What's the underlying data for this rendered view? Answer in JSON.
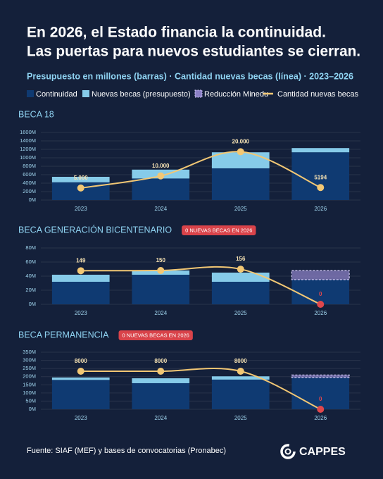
{
  "title": [
    "En 2026, el Estado financia la continuidad.",
    "Las puertas para nuevos estudiantes se cierran."
  ],
  "subtitle": "Presupuesto en millones (barras) · Cantidad nuevas becas (línea) · 2023–2026",
  "source": "Fuente: SIAF (MEF) y bases de convocatorias (Pronabec)",
  "logo": "CAPPES",
  "chart_data": [
    {
      "type": "bar-line",
      "title": "BECA 18",
      "categories": [
        "2023",
        "2024",
        "2025",
        "2026"
      ],
      "stacked": true,
      "ylim": [
        0,
        1600
      ],
      "yticks": [
        {
          "value": 0,
          "label": "0M"
        },
        {
          "value": 200,
          "label": "200M"
        },
        {
          "value": 400,
          "label": "400M"
        },
        {
          "value": 600,
          "label": "600M"
        },
        {
          "value": 800,
          "label": "800M"
        },
        {
          "value": 1000,
          "label": "1000M"
        },
        {
          "value": 1200,
          "label": "1200M"
        },
        {
          "value": 1400,
          "label": "1400M"
        },
        {
          "value": 1600,
          "label": "1600M"
        }
      ],
      "y2lim": [
        0,
        28000
      ],
      "grid": true,
      "series": [
        {
          "name": "Continuidad",
          "kind": "bar",
          "color": "#0f3a72",
          "values": [
            420,
            510,
            750,
            1130
          ]
        },
        {
          "name": "Nuevas becas (presupuesto)",
          "kind": "bar",
          "color": "#86cbe9",
          "values": [
            130,
            210,
            380,
            100
          ]
        },
        {
          "name": "Reducción Minedu",
          "kind": "dashed-bar",
          "color": "#8b80c6",
          "values": [
            null,
            null,
            null,
            null
          ]
        },
        {
          "name": "Cantidad nuevas becas",
          "kind": "line",
          "axis": "y2",
          "color": "#f2c774",
          "values": [
            5000,
            10000,
            20000,
            5194
          ],
          "value_labels": [
            "5.000",
            "10.000",
            "20.000",
            "5194"
          ],
          "marker_colors": [
            "#f2c774",
            "#f2c774",
            "#f2c774",
            "#f2c774"
          ]
        }
      ]
    },
    {
      "type": "bar-line",
      "title": "BECA GENERACIÓN BICENTENARIO",
      "annotation": "0 NUEVAS BECAS EN 2026",
      "categories": [
        "2023",
        "2024",
        "2025",
        "2026"
      ],
      "stacked": true,
      "ylim": [
        0,
        80
      ],
      "yticks": [
        {
          "value": 0,
          "label": "0M"
        },
        {
          "value": 20,
          "label": "20M"
        },
        {
          "value": 40,
          "label": "40M"
        },
        {
          "value": 60,
          "label": "60M"
        },
        {
          "value": 80,
          "label": "80M"
        }
      ],
      "y2lim": [
        0,
        250
      ],
      "grid": true,
      "series": [
        {
          "name": "Continuidad",
          "kind": "bar",
          "color": "#0f3a72",
          "values": [
            32,
            42,
            32,
            35
          ]
        },
        {
          "name": "Nuevas becas (presupuesto)",
          "kind": "bar",
          "color": "#86cbe9",
          "values": [
            10,
            6,
            13,
            null
          ]
        },
        {
          "name": "Reducción Minedu",
          "kind": "dashed-bar",
          "color": "#8b80c6",
          "values": [
            null,
            null,
            null,
            13
          ]
        },
        {
          "name": "Cantidad nuevas becas",
          "kind": "line",
          "axis": "y2",
          "color": "#f2c774",
          "values": [
            149,
            150,
            156,
            0
          ],
          "marker_colors": [
            "#f2c774",
            "#f2c774",
            "#f2c774",
            "#e0474c"
          ]
        }
      ]
    },
    {
      "type": "bar-line",
      "title": "BECA PERMANENCIA",
      "annotation": "0 NUEVAS BECAS EN 2026",
      "categories": [
        "2023",
        "2024",
        "2025",
        "2026"
      ],
      "stacked": true,
      "ylim": [
        0,
        350
      ],
      "yticks": [
        {
          "value": 0,
          "label": "0M"
        },
        {
          "value": 50,
          "label": "50M"
        },
        {
          "value": 100,
          "label": "100M"
        },
        {
          "value": 150,
          "label": "150M"
        },
        {
          "value": 200,
          "label": "200M"
        },
        {
          "value": 250,
          "label": "250M"
        },
        {
          "value": 300,
          "label": "300M"
        },
        {
          "value": 350,
          "label": "350M"
        }
      ],
      "y2lim": [
        0,
        12000
      ],
      "grid": true,
      "series": [
        {
          "name": "Continuidad",
          "kind": "bar",
          "color": "#0f3a72",
          "values": [
            180,
            160,
            182,
            195
          ]
        },
        {
          "name": "Nuevas becas (presupuesto)",
          "kind": "bar",
          "color": "#86cbe9",
          "values": [
            15,
            30,
            20,
            null
          ]
        },
        {
          "name": "Reducción Minedu",
          "kind": "dashed-bar",
          "color": "#8b80c6",
          "values": [
            null,
            null,
            null,
            15
          ]
        },
        {
          "name": "Cantidad nuevas becas",
          "kind": "line",
          "axis": "y2",
          "color": "#f2c774",
          "values": [
            8000,
            8000,
            8000,
            0
          ],
          "marker_colors": [
            "#f2c774",
            "#f2c774",
            "#f2c774",
            "#e0474c"
          ]
        }
      ]
    }
  ]
}
